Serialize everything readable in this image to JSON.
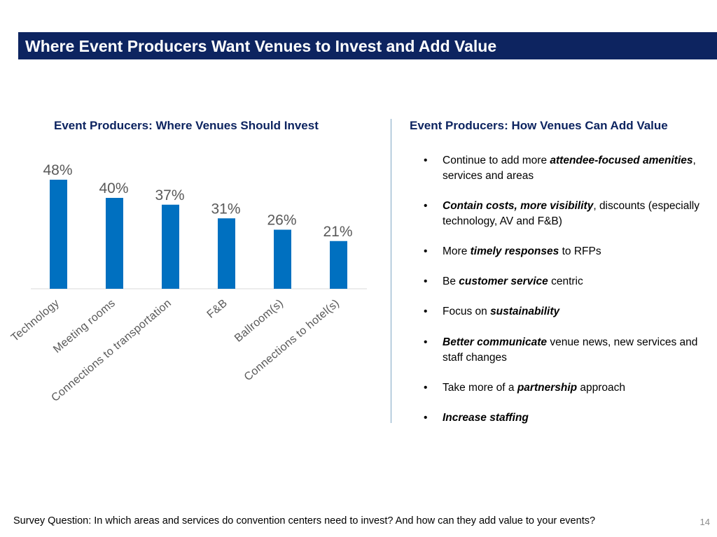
{
  "title": "Where Event Producers Want Venues to Invest and Add Value",
  "left_subtitle": "Event Producers: Where Venues Should Invest",
  "right_subtitle": "Event Producers: How Venues Can Add Value",
  "chart_data": {
    "type": "bar",
    "categories": [
      "Technology",
      "Meeting rooms",
      "Connections to transportation",
      "F&B",
      "Ballroom(s)",
      "Connections to hotel(s)"
    ],
    "values": [
      48,
      40,
      37,
      31,
      26,
      21
    ],
    "value_labels": [
      "48%",
      "40%",
      "37%",
      "31%",
      "26%",
      "21%"
    ],
    "ylim": [
      0,
      55
    ],
    "grid": false,
    "bar_color": "#0070c0",
    "label_color": "#595959"
  },
  "bullets": [
    [
      {
        "t": "Continue to add more "
      },
      {
        "t": "attendee-focused amenities",
        "b": true
      },
      {
        "t": ", services and areas"
      }
    ],
    [
      {
        "t": "Contain costs, more visibility",
        "b": true
      },
      {
        "t": ", discounts (especially technology, AV and F&B)"
      }
    ],
    [
      {
        "t": "More "
      },
      {
        "t": "timely responses",
        "b": true
      },
      {
        "t": " to RFPs"
      }
    ],
    [
      {
        "t": "Be "
      },
      {
        "t": "customer service",
        "b": true
      },
      {
        "t": " centric"
      }
    ],
    [
      {
        "t": "Focus on "
      },
      {
        "t": "sustainability",
        "b": true
      }
    ],
    [
      {
        "t": "Better communicate",
        "b": true
      },
      {
        "t": " venue news, new services and staff changes"
      }
    ],
    [
      {
        "t": "Take more of a "
      },
      {
        "t": "partnership",
        "b": true
      },
      {
        "t": " approach"
      }
    ],
    [
      {
        "t": "Increase staffing",
        "b": true
      }
    ]
  ],
  "footer": "Survey Question: In which areas and services do convention centers need to invest? And how can they add value to your events?",
  "page_number": "14"
}
